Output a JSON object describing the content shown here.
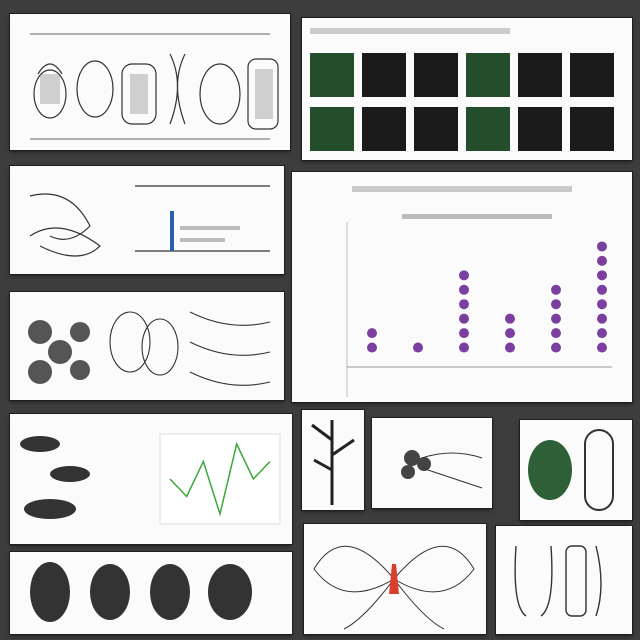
{
  "page": {
    "background": "#3d3d3d",
    "panel_background": "#fbfbfb"
  },
  "panels": [
    {
      "id": "sketches-top-left",
      "kind": "illustration"
    },
    {
      "id": "image-grid-top-right",
      "kind": "thumbnail-grid",
      "thumb_count": 12
    },
    {
      "id": "bar-drawing-left",
      "kind": "illustration-with-bar-chart"
    },
    {
      "id": "dot-chart-right",
      "kind": "dot-column-chart",
      "accent": "#7b3fa0"
    },
    {
      "id": "botanical-middle-left",
      "kind": "illustration"
    },
    {
      "id": "caterpillars-line-chart",
      "kind": "illustration-with-line-chart",
      "line_color": "#3aa83a"
    },
    {
      "id": "botanical-tree-bottom-center",
      "kind": "illustration"
    },
    {
      "id": "leaf-cucumber-right",
      "kind": "illustration"
    },
    {
      "id": "specimen-strip-bottom",
      "kind": "illustration"
    },
    {
      "id": "flower-bottom-center",
      "kind": "illustration",
      "accent": "#d9402c"
    },
    {
      "id": "seeds-bottom-right",
      "kind": "illustration"
    }
  ],
  "chart_data": [
    {
      "type": "scatter",
      "series": [
        {
          "values": [
            2,
            1,
            6,
            3,
            5,
            8
          ]
        }
      ],
      "ylim": [
        0,
        9
      ]
    },
    {
      "type": "line",
      "series": [
        {
          "values": [
            4,
            3,
            5,
            2,
            6,
            4,
            5
          ]
        }
      ]
    }
  ]
}
